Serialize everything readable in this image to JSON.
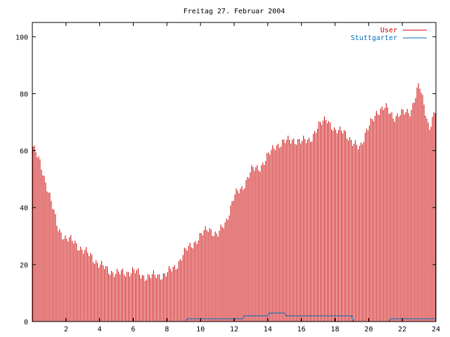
{
  "chart_data": {
    "type": "bar",
    "title": "Freitag 27. Februar 2004",
    "xlabel": "",
    "ylabel": "",
    "xlim": [
      0,
      24
    ],
    "ylim": [
      0,
      105
    ],
    "x_ticks": [
      2,
      4,
      6,
      8,
      10,
      12,
      14,
      16,
      18,
      20,
      22,
      24
    ],
    "y_ticks": [
      0,
      20,
      40,
      60,
      80,
      100
    ],
    "grid": false,
    "legend_position": "top-right",
    "series": [
      {
        "name": "User",
        "color": "#cc0000",
        "profile": [
          [
            0,
            62
          ],
          [
            0.5,
            55
          ],
          [
            1.0,
            45
          ],
          [
            1.5,
            33
          ],
          [
            2.0,
            29
          ],
          [
            2.5,
            28
          ],
          [
            3.0,
            25
          ],
          [
            3.5,
            23
          ],
          [
            4.0,
            20
          ],
          [
            4.5,
            18
          ],
          [
            5.0,
            17
          ],
          [
            5.5,
            17
          ],
          [
            6.0,
            18
          ],
          [
            6.5,
            16
          ],
          [
            7.0,
            16
          ],
          [
            7.5,
            16
          ],
          [
            8.0,
            17
          ],
          [
            8.5,
            19
          ],
          [
            9.0,
            24
          ],
          [
            9.5,
            27
          ],
          [
            10.0,
            30
          ],
          [
            10.5,
            33
          ],
          [
            11.0,
            30
          ],
          [
            11.5,
            35
          ],
          [
            12.0,
            44
          ],
          [
            12.5,
            47
          ],
          [
            13.0,
            53
          ],
          [
            13.5,
            54
          ],
          [
            14.0,
            58
          ],
          [
            14.5,
            62
          ],
          [
            15.0,
            63
          ],
          [
            15.5,
            64
          ],
          [
            16.0,
            63
          ],
          [
            16.5,
            64
          ],
          [
            17.0,
            68
          ],
          [
            17.5,
            72
          ],
          [
            18.0,
            66
          ],
          [
            18.5,
            68
          ],
          [
            19.0,
            62
          ],
          [
            19.5,
            62
          ],
          [
            20.0,
            68
          ],
          [
            20.5,
            74
          ],
          [
            21.0,
            75
          ],
          [
            21.5,
            72
          ],
          [
            22.0,
            73
          ],
          [
            22.5,
            74
          ],
          [
            23.0,
            83
          ],
          [
            23.3,
            76
          ],
          [
            23.6,
            68
          ],
          [
            24.0,
            74
          ]
        ]
      },
      {
        "name": "Stuttgarter",
        "color": "#0070c0",
        "profile": [
          [
            0,
            0
          ],
          [
            9.1,
            0
          ],
          [
            9.2,
            1
          ],
          [
            12.5,
            1
          ],
          [
            12.6,
            2
          ],
          [
            14.0,
            2
          ],
          [
            14.1,
            3
          ],
          [
            15.0,
            3
          ],
          [
            15.1,
            2
          ],
          [
            19.0,
            2
          ],
          [
            19.1,
            0
          ],
          [
            21.2,
            0
          ],
          [
            21.3,
            1
          ],
          [
            24.0,
            1
          ]
        ]
      }
    ]
  }
}
